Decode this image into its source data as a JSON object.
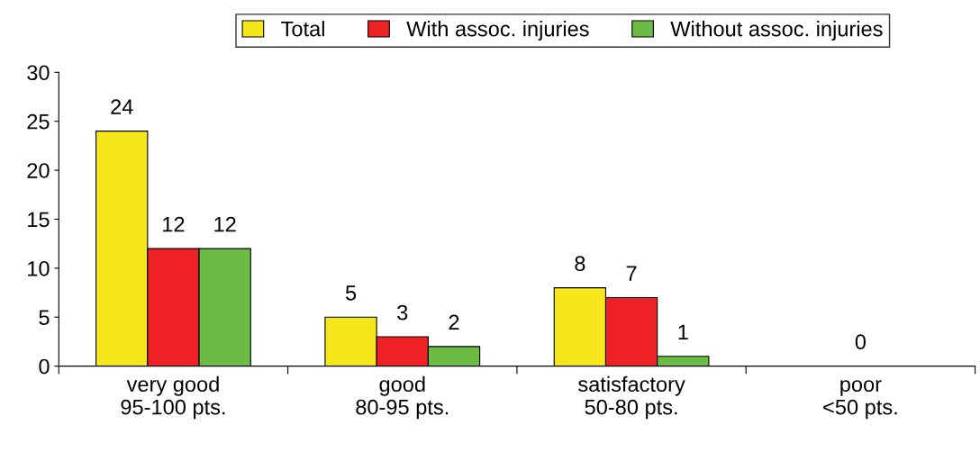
{
  "chart_data": {
    "type": "bar",
    "categories": [
      "very good\n95-100 pts.",
      "good\n80-95 pts.",
      "satisfactory\n50-80 pts.",
      "poor\n<50 pts."
    ],
    "series": [
      {
        "name": "Total",
        "color": "#f5e71c",
        "values": [
          24,
          5,
          8,
          0
        ],
        "value_labels": [
          "24",
          "5",
          "8",
          null
        ]
      },
      {
        "name": "With assoc. injuries",
        "color": "#ee2224",
        "values": [
          12,
          3,
          7,
          0
        ],
        "value_labels": [
          "12",
          "3",
          "7",
          "0"
        ]
      },
      {
        "name": "Without assoc. injuries",
        "color": "#6cbb45",
        "values": [
          12,
          2,
          1,
          0
        ],
        "value_labels": [
          "12",
          "2",
          "1",
          null
        ]
      }
    ],
    "ylim": [
      0,
      30
    ],
    "yticks": [
      0,
      5,
      10,
      15,
      20,
      25,
      30
    ],
    "grid": false,
    "legend": "top"
  }
}
